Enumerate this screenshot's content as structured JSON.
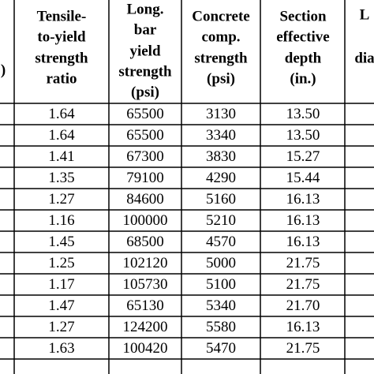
{
  "table": {
    "headers": [
      {
        "lines": [
          ")"
        ]
      },
      {
        "lines": [
          "Tensile-",
          "to-yield",
          "strength",
          "ratio"
        ]
      },
      {
        "lines": [
          "Long.",
          "bar",
          "yield",
          "strength",
          "(psi)"
        ]
      },
      {
        "lines": [
          "Concrete",
          "comp.",
          "strength",
          "(psi)"
        ]
      },
      {
        "lines": [
          "Section",
          "effective",
          "depth",
          "(in.)"
        ]
      },
      {
        "lines": [
          "L",
          "dia"
        ]
      }
    ],
    "rows": [
      [
        "1.64",
        "65500",
        "3130",
        "13.50"
      ],
      [
        "1.64",
        "65500",
        "3340",
        "13.50"
      ],
      [
        "1.41",
        "67300",
        "3830",
        "15.27"
      ],
      [
        "1.35",
        "79100",
        "4290",
        "15.44"
      ],
      [
        "1.27",
        "84600",
        "5160",
        "16.13"
      ],
      [
        "1.16",
        "100000",
        "5210",
        "16.13"
      ],
      [
        "1.45",
        "68500",
        "4570",
        "16.13"
      ],
      [
        "1.25",
        "102120",
        "5000",
        "21.75"
      ],
      [
        "1.17",
        "105730",
        "5100",
        "21.75"
      ],
      [
        "1.47",
        "65130",
        "5340",
        "21.70"
      ],
      [
        "1.27",
        "124200",
        "5580",
        "16.13"
      ],
      [
        "1.63",
        "100420",
        "5470",
        "21.75"
      ]
    ]
  }
}
